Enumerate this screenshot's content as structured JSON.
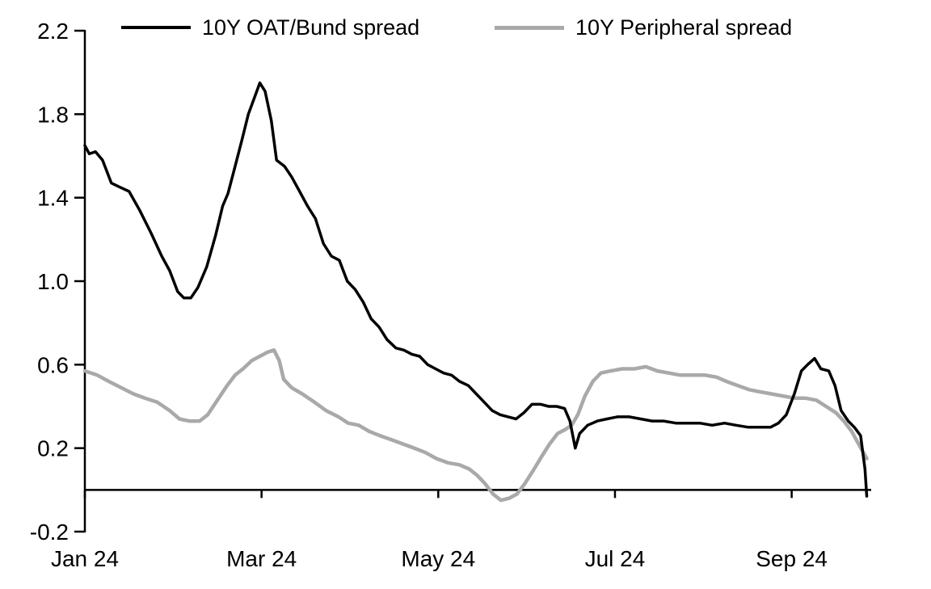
{
  "chart_data": {
    "type": "line",
    "title": "",
    "xlabel": "",
    "ylabel": "",
    "grid": false,
    "legend_position": "top",
    "xlim": [
      0,
      8.9
    ],
    "ylim": [
      -0.2,
      2.2
    ],
    "x_unit": "months since Jan 2024",
    "y_ticks": [
      {
        "value": 2.2,
        "label": "2.2"
      },
      {
        "value": 1.8,
        "label": "1.8"
      },
      {
        "value": 1.4,
        "label": "1.4"
      },
      {
        "value": 1.0,
        "label": "1.0"
      },
      {
        "value": 0.6,
        "label": "0.6"
      },
      {
        "value": 0.2,
        "label": "0.2"
      },
      {
        "value": -0.2,
        "label": "-0.2"
      }
    ],
    "x_ticks": [
      {
        "value": 0,
        "label": "Jan 24"
      },
      {
        "value": 2,
        "label": "Mar 24"
      },
      {
        "value": 4,
        "label": "May 24"
      },
      {
        "value": 6,
        "label": "Jul 24"
      },
      {
        "value": 8,
        "label": "Sep 24"
      }
    ],
    "baseline_y": 0,
    "series": [
      {
        "name": "10Y OAT/Bund spread",
        "color": "#000000",
        "width": 3.5,
        "points": [
          [
            0.0,
            1.65
          ],
          [
            0.05,
            1.61
          ],
          [
            0.12,
            1.62
          ],
          [
            0.2,
            1.58
          ],
          [
            0.3,
            1.47
          ],
          [
            0.4,
            1.45
          ],
          [
            0.5,
            1.43
          ],
          [
            0.62,
            1.34
          ],
          [
            0.75,
            1.23
          ],
          [
            0.87,
            1.12
          ],
          [
            0.96,
            1.05
          ],
          [
            1.05,
            0.95
          ],
          [
            1.12,
            0.92
          ],
          [
            1.2,
            0.92
          ],
          [
            1.28,
            0.97
          ],
          [
            1.38,
            1.07
          ],
          [
            1.48,
            1.22
          ],
          [
            1.56,
            1.36
          ],
          [
            1.62,
            1.42
          ],
          [
            1.7,
            1.55
          ],
          [
            1.78,
            1.68
          ],
          [
            1.85,
            1.8
          ],
          [
            1.92,
            1.88
          ],
          [
            1.98,
            1.95
          ],
          [
            2.04,
            1.91
          ],
          [
            2.11,
            1.77
          ],
          [
            2.17,
            1.58
          ],
          [
            2.26,
            1.55
          ],
          [
            2.34,
            1.5
          ],
          [
            2.43,
            1.43
          ],
          [
            2.52,
            1.36
          ],
          [
            2.61,
            1.3
          ],
          [
            2.7,
            1.18
          ],
          [
            2.79,
            1.12
          ],
          [
            2.88,
            1.1
          ],
          [
            2.97,
            1.0
          ],
          [
            3.06,
            0.96
          ],
          [
            3.15,
            0.9
          ],
          [
            3.24,
            0.82
          ],
          [
            3.33,
            0.78
          ],
          [
            3.42,
            0.72
          ],
          [
            3.52,
            0.68
          ],
          [
            3.61,
            0.67
          ],
          [
            3.7,
            0.65
          ],
          [
            3.79,
            0.64
          ],
          [
            3.88,
            0.6
          ],
          [
            3.97,
            0.58
          ],
          [
            4.06,
            0.56
          ],
          [
            4.15,
            0.55
          ],
          [
            4.24,
            0.52
          ],
          [
            4.34,
            0.5
          ],
          [
            4.43,
            0.46
          ],
          [
            4.52,
            0.42
          ],
          [
            4.61,
            0.38
          ],
          [
            4.7,
            0.36
          ],
          [
            4.79,
            0.35
          ],
          [
            4.88,
            0.34
          ],
          [
            4.97,
            0.37
          ],
          [
            5.06,
            0.41
          ],
          [
            5.16,
            0.41
          ],
          [
            5.25,
            0.4
          ],
          [
            5.34,
            0.4
          ],
          [
            5.43,
            0.39
          ],
          [
            5.49,
            0.33
          ],
          [
            5.55,
            0.2
          ],
          [
            5.6,
            0.27
          ],
          [
            5.69,
            0.31
          ],
          [
            5.8,
            0.33
          ],
          [
            5.91,
            0.34
          ],
          [
            6.03,
            0.35
          ],
          [
            6.16,
            0.35
          ],
          [
            6.29,
            0.34
          ],
          [
            6.42,
            0.33
          ],
          [
            6.55,
            0.33
          ],
          [
            6.69,
            0.32
          ],
          [
            6.83,
            0.32
          ],
          [
            6.96,
            0.32
          ],
          [
            7.1,
            0.31
          ],
          [
            7.24,
            0.32
          ],
          [
            7.37,
            0.31
          ],
          [
            7.51,
            0.3
          ],
          [
            7.64,
            0.3
          ],
          [
            7.76,
            0.3
          ],
          [
            7.85,
            0.32
          ],
          [
            7.94,
            0.36
          ],
          [
            8.03,
            0.46
          ],
          [
            8.11,
            0.57
          ],
          [
            8.18,
            0.6
          ],
          [
            8.26,
            0.63
          ],
          [
            8.33,
            0.58
          ],
          [
            8.42,
            0.57
          ],
          [
            8.49,
            0.5
          ],
          [
            8.56,
            0.38
          ],
          [
            8.64,
            0.33
          ],
          [
            8.71,
            0.3
          ],
          [
            8.78,
            0.26
          ],
          [
            8.83,
            0.1
          ],
          [
            8.85,
            -0.03
          ]
        ]
      },
      {
        "name": "10Y Peripheral spread",
        "color": "#A9A9A9",
        "width": 4.5,
        "points": [
          [
            0.0,
            0.57
          ],
          [
            0.14,
            0.55
          ],
          [
            0.27,
            0.52
          ],
          [
            0.41,
            0.49
          ],
          [
            0.55,
            0.46
          ],
          [
            0.68,
            0.44
          ],
          [
            0.82,
            0.42
          ],
          [
            0.96,
            0.38
          ],
          [
            1.07,
            0.34
          ],
          [
            1.18,
            0.33
          ],
          [
            1.3,
            0.33
          ],
          [
            1.39,
            0.36
          ],
          [
            1.5,
            0.43
          ],
          [
            1.61,
            0.5
          ],
          [
            1.7,
            0.55
          ],
          [
            1.79,
            0.58
          ],
          [
            1.89,
            0.62
          ],
          [
            1.98,
            0.64
          ],
          [
            2.07,
            0.66
          ],
          [
            2.14,
            0.67
          ],
          [
            2.2,
            0.62
          ],
          [
            2.25,
            0.53
          ],
          [
            2.34,
            0.49
          ],
          [
            2.46,
            0.46
          ],
          [
            2.6,
            0.42
          ],
          [
            2.73,
            0.38
          ],
          [
            2.87,
            0.35
          ],
          [
            2.98,
            0.32
          ],
          [
            3.1,
            0.31
          ],
          [
            3.22,
            0.28
          ],
          [
            3.34,
            0.26
          ],
          [
            3.47,
            0.24
          ],
          [
            3.6,
            0.22
          ],
          [
            3.73,
            0.2
          ],
          [
            3.85,
            0.18
          ],
          [
            3.98,
            0.15
          ],
          [
            4.11,
            0.13
          ],
          [
            4.24,
            0.12
          ],
          [
            4.35,
            0.1
          ],
          [
            4.44,
            0.07
          ],
          [
            4.53,
            0.03
          ],
          [
            4.62,
            -0.02
          ],
          [
            4.71,
            -0.05
          ],
          [
            4.8,
            -0.04
          ],
          [
            4.89,
            -0.02
          ],
          [
            4.98,
            0.03
          ],
          [
            5.07,
            0.09
          ],
          [
            5.17,
            0.16
          ],
          [
            5.26,
            0.22
          ],
          [
            5.35,
            0.27
          ],
          [
            5.44,
            0.29
          ],
          [
            5.51,
            0.31
          ],
          [
            5.58,
            0.36
          ],
          [
            5.66,
            0.45
          ],
          [
            5.75,
            0.52
          ],
          [
            5.84,
            0.56
          ],
          [
            5.95,
            0.57
          ],
          [
            6.08,
            0.58
          ],
          [
            6.22,
            0.58
          ],
          [
            6.35,
            0.59
          ],
          [
            6.48,
            0.57
          ],
          [
            6.61,
            0.56
          ],
          [
            6.74,
            0.55
          ],
          [
            6.88,
            0.55
          ],
          [
            7.02,
            0.55
          ],
          [
            7.15,
            0.54
          ],
          [
            7.26,
            0.52
          ],
          [
            7.39,
            0.5
          ],
          [
            7.52,
            0.48
          ],
          [
            7.64,
            0.47
          ],
          [
            7.77,
            0.46
          ],
          [
            7.9,
            0.45
          ],
          [
            8.03,
            0.44
          ],
          [
            8.15,
            0.44
          ],
          [
            8.28,
            0.43
          ],
          [
            8.39,
            0.4
          ],
          [
            8.5,
            0.37
          ],
          [
            8.59,
            0.33
          ],
          [
            8.68,
            0.28
          ],
          [
            8.77,
            0.21
          ],
          [
            8.85,
            0.15
          ]
        ]
      }
    ]
  }
}
